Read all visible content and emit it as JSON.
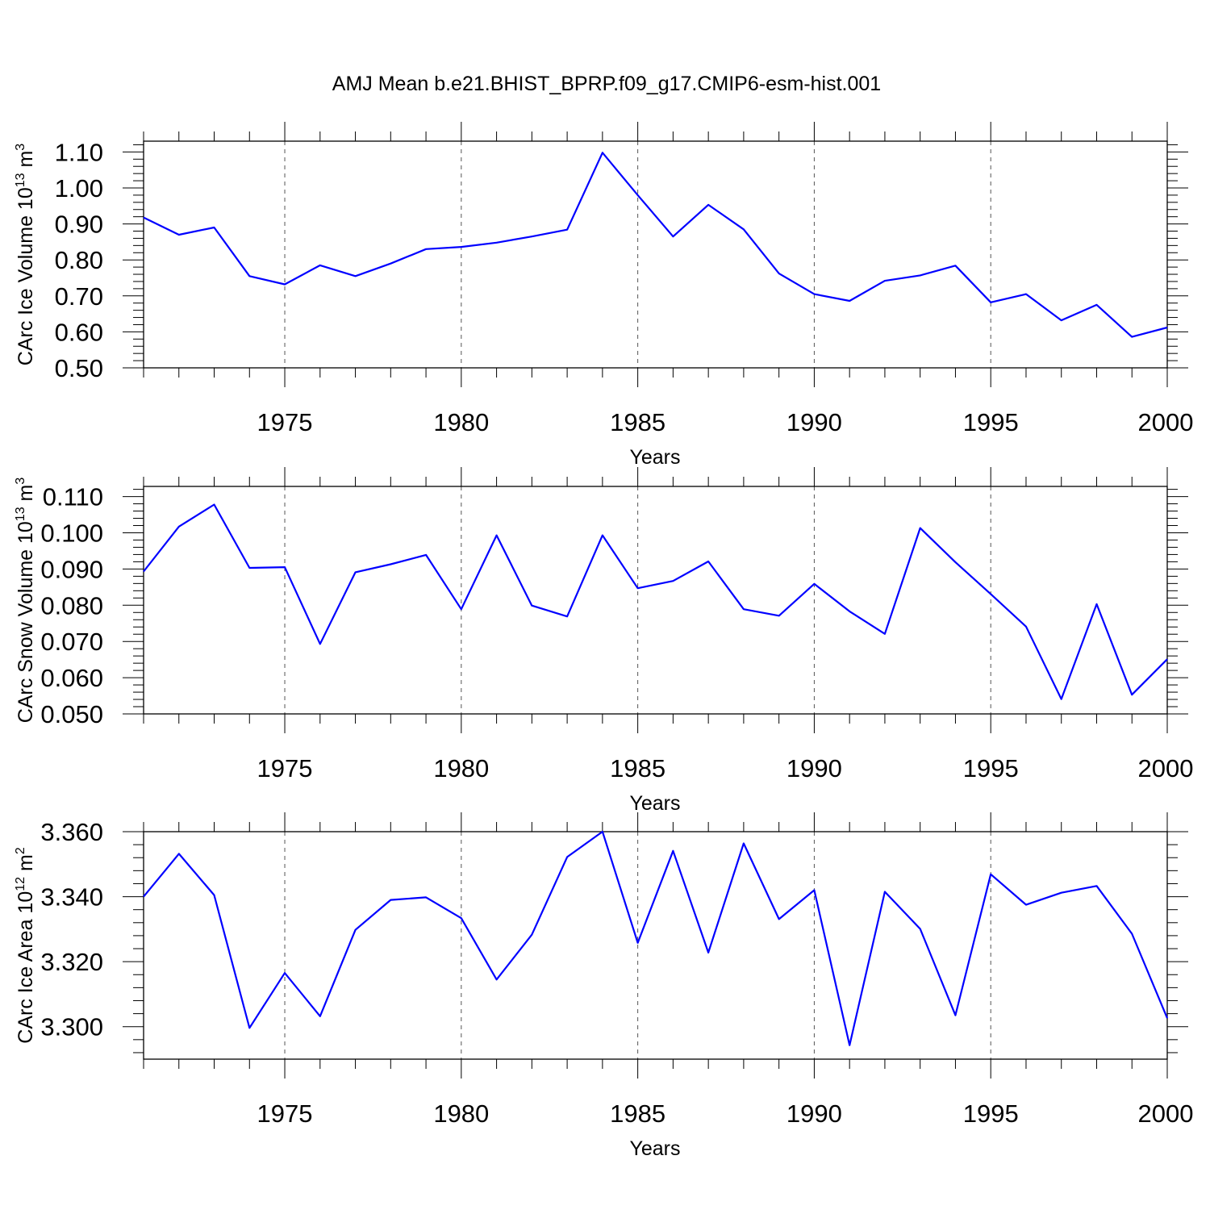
{
  "title": "AMJ Mean b.e21.BHIST_BPRP.f09_g17.CMIP6-esm-hist.001",
  "colors": {
    "line": "#0000ff",
    "axis": "#000000",
    "grid": "#555555"
  },
  "chart_data": [
    {
      "type": "line",
      "xlabel": "Years",
      "ylabel_main": "CArc Ice Volume 10",
      "ylabel_exp": "13",
      "ylabel_unit": " m",
      "ylabel_unit_exp": "3",
      "xlim": [
        1971,
        2000
      ],
      "ylim": [
        0.5,
        1.13
      ],
      "yticks": [
        0.5,
        0.6,
        0.7,
        0.8,
        0.9,
        1.0,
        1.1
      ],
      "ytick_labels": [
        "0.50",
        "0.60",
        "0.70",
        "0.80",
        "0.90",
        "1.00",
        "1.10"
      ],
      "xticks": [
        1975,
        1980,
        1985,
        1990,
        1995,
        2000
      ],
      "xtick_labels": [
        "1975",
        "1980",
        "1985",
        "1990",
        "1995",
        "2000"
      ],
      "grid_x": true,
      "x": [
        1971,
        1972,
        1973,
        1974,
        1975,
        1976,
        1977,
        1978,
        1979,
        1980,
        1981,
        1982,
        1983,
        1984,
        1985,
        1986,
        1987,
        1988,
        1989,
        1990,
        1991,
        1992,
        1993,
        1994,
        1995,
        1996,
        1997,
        1998,
        1999,
        2000
      ],
      "series": [
        {
          "values": [
            0.918,
            0.87,
            0.89,
            0.755,
            0.732,
            0.785,
            0.755,
            0.79,
            0.83,
            0.836,
            0.848,
            0.865,
            0.884,
            1.098,
            0.98,
            0.865,
            0.953,
            0.885,
            0.762,
            0.705,
            0.686,
            0.742,
            0.757,
            0.784,
            0.682,
            0.705,
            0.632,
            0.675,
            0.586,
            0.612
          ]
        }
      ]
    },
    {
      "type": "line",
      "xlabel": "Years",
      "ylabel_main": "CArc Snow Volume 10",
      "ylabel_exp": "13",
      "ylabel_unit": " m",
      "ylabel_unit_exp": "3",
      "xlim": [
        1971,
        2000
      ],
      "ylim": [
        0.05,
        0.1128
      ],
      "yticks": [
        0.05,
        0.06,
        0.07,
        0.08,
        0.09,
        0.1,
        0.11
      ],
      "ytick_labels": [
        "0.050",
        "0.060",
        "0.070",
        "0.080",
        "0.090",
        "0.100",
        "0.110"
      ],
      "xticks": [
        1975,
        1980,
        1985,
        1990,
        1995,
        2000
      ],
      "xtick_labels": [
        "1975",
        "1980",
        "1985",
        "1990",
        "1995",
        "2000"
      ],
      "grid_x": true,
      "x": [
        1971,
        1972,
        1973,
        1974,
        1975,
        1976,
        1977,
        1978,
        1979,
        1980,
        1981,
        1982,
        1983,
        1984,
        1985,
        1986,
        1987,
        1988,
        1989,
        1990,
        1991,
        1992,
        1993,
        1994,
        1995,
        1996,
        1997,
        1998,
        1999,
        2000
      ],
      "series": [
        {
          "values": [
            0.0893,
            0.1017,
            0.1078,
            0.0903,
            0.0905,
            0.0693,
            0.0891,
            0.0913,
            0.0939,
            0.0789,
            0.0993,
            0.0799,
            0.0769,
            0.0993,
            0.0847,
            0.0867,
            0.0921,
            0.0789,
            0.0771,
            0.0859,
            0.0783,
            0.0721,
            0.1013,
            0.0919,
            0.0831,
            0.0741,
            0.0541,
            0.0803,
            0.0553,
            0.0651
          ]
        }
      ]
    },
    {
      "type": "line",
      "xlabel": "Years",
      "ylabel_main": "CArc Ice Area 10",
      "ylabel_exp": "12",
      "ylabel_unit": " m",
      "ylabel_unit_exp": "2",
      "xlim": [
        1971,
        2000
      ],
      "ylim": [
        3.29,
        3.36
      ],
      "yticks": [
        3.3,
        3.32,
        3.34,
        3.36
      ],
      "ytick_labels": [
        "3.300",
        "3.320",
        "3.340",
        "3.360"
      ],
      "xticks": [
        1975,
        1980,
        1985,
        1990,
        1995,
        2000
      ],
      "xtick_labels": [
        "1975",
        "1980",
        "1985",
        "1990",
        "1995",
        "2000"
      ],
      "grid_x": true,
      "x": [
        1971,
        1972,
        1973,
        1974,
        1975,
        1976,
        1977,
        1978,
        1979,
        1980,
        1981,
        1982,
        1983,
        1984,
        1985,
        1986,
        1987,
        1988,
        1989,
        1990,
        1991,
        1992,
        1993,
        1994,
        1995,
        1996,
        1997,
        1998,
        1999,
        2000
      ],
      "series": [
        {
          "values": [
            3.34,
            3.3532,
            3.3405,
            3.2996,
            3.3165,
            3.3032,
            3.3298,
            3.339,
            3.3398,
            3.3334,
            3.3145,
            3.3283,
            3.3522,
            3.36,
            3.3258,
            3.3541,
            3.3228,
            3.3564,
            3.3331,
            3.342,
            3.2943,
            3.3415,
            3.3301,
            3.3035,
            3.3469,
            3.3375,
            3.3412,
            3.3433,
            3.3286,
            3.3026
          ]
        }
      ]
    }
  ]
}
